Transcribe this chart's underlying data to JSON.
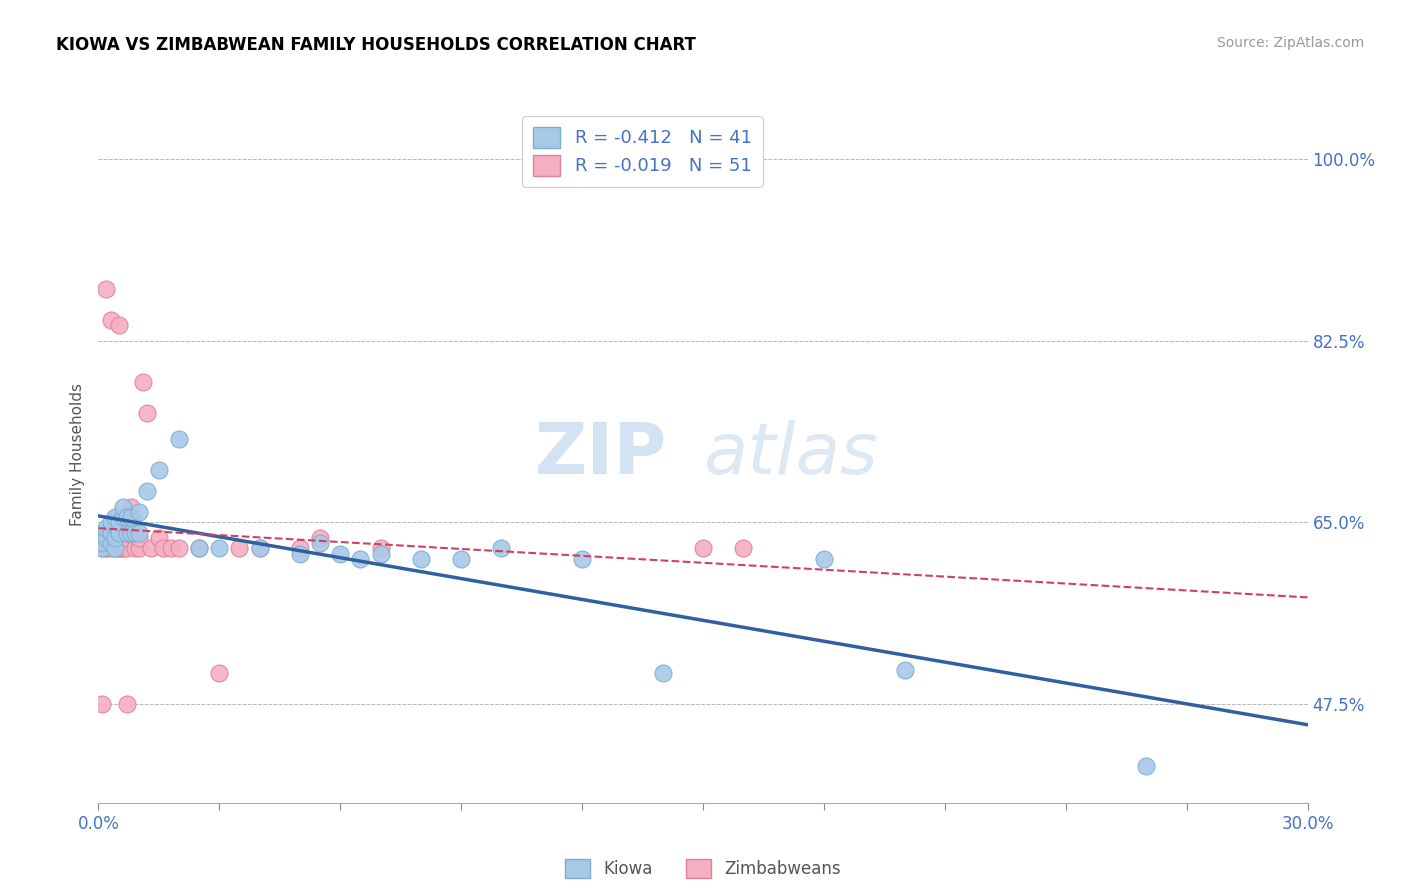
{
  "title": "KIOWA VS ZIMBABWEAN FAMILY HOUSEHOLDS CORRELATION CHART",
  "source": "Source: ZipAtlas.com",
  "ylabel": "Family Households",
  "ytick_labels": [
    "47.5%",
    "65.0%",
    "82.5%",
    "100.0%"
  ],
  "ytick_values": [
    0.475,
    0.65,
    0.825,
    1.0
  ],
  "xlim": [
    0.0,
    0.3
  ],
  "ylim": [
    0.38,
    1.05
  ],
  "kiowa_color": "#A8C8E8",
  "kiowa_edge_color": "#7AAFD4",
  "zimbabwean_color": "#F4B0C0",
  "zimbabwean_edge_color": "#E080A0",
  "kiowa_line_color": "#3060A0",
  "zimbabwean_line_color": "#D04060",
  "kiowa_R": -0.412,
  "kiowa_N": 41,
  "zimbabwean_R": -0.019,
  "zimbabwean_N": 51,
  "legend_text_color": "#4472C4",
  "watermark_text": "ZIP",
  "watermark_text2": "atlas",
  "title_fontsize": 12,
  "source_fontsize": 10,
  "tick_label_color": "#4472C4",
  "kiowa_x": [
    0.001,
    0.001,
    0.001,
    0.002,
    0.002,
    0.003,
    0.003,
    0.003,
    0.004,
    0.004,
    0.004,
    0.005,
    0.005,
    0.006,
    0.006,
    0.007,
    0.007,
    0.008,
    0.008,
    0.009,
    0.01,
    0.01,
    0.012,
    0.015,
    0.02,
    0.025,
    0.03,
    0.04,
    0.05,
    0.055,
    0.06,
    0.065,
    0.07,
    0.08,
    0.09,
    0.1,
    0.12,
    0.14,
    0.18,
    0.2,
    0.26
  ],
  "kiowa_y": [
    0.625,
    0.63,
    0.64,
    0.635,
    0.645,
    0.63,
    0.64,
    0.65,
    0.625,
    0.635,
    0.655,
    0.64,
    0.65,
    0.655,
    0.665,
    0.64,
    0.655,
    0.64,
    0.655,
    0.64,
    0.64,
    0.66,
    0.68,
    0.7,
    0.73,
    0.625,
    0.625,
    0.625,
    0.62,
    0.63,
    0.62,
    0.615,
    0.62,
    0.615,
    0.615,
    0.625,
    0.615,
    0.505,
    0.615,
    0.508,
    0.415
  ],
  "zimbabwean_x": [
    0.001,
    0.001,
    0.002,
    0.002,
    0.002,
    0.002,
    0.003,
    0.003,
    0.003,
    0.003,
    0.004,
    0.004,
    0.004,
    0.004,
    0.005,
    0.005,
    0.005,
    0.005,
    0.006,
    0.006,
    0.006,
    0.007,
    0.007,
    0.007,
    0.008,
    0.008,
    0.009,
    0.009,
    0.01,
    0.01,
    0.011,
    0.012,
    0.013,
    0.015,
    0.016,
    0.018,
    0.02,
    0.025,
    0.03,
    0.035,
    0.04,
    0.05,
    0.055,
    0.07,
    0.15,
    0.16,
    0.002,
    0.003,
    0.005,
    0.007,
    0.001
  ],
  "zimbabwean_y": [
    0.625,
    0.63,
    0.625,
    0.63,
    0.64,
    0.625,
    0.625,
    0.63,
    0.64,
    0.635,
    0.625,
    0.635,
    0.63,
    0.64,
    0.625,
    0.635,
    0.625,
    0.63,
    0.625,
    0.635,
    0.625,
    0.635,
    0.625,
    0.635,
    0.665,
    0.655,
    0.635,
    0.625,
    0.625,
    0.635,
    0.785,
    0.755,
    0.625,
    0.635,
    0.625,
    0.625,
    0.625,
    0.625,
    0.505,
    0.625,
    0.625,
    0.625,
    0.635,
    0.625,
    0.625,
    0.625,
    0.875,
    0.845,
    0.84,
    0.475,
    0.475
  ]
}
